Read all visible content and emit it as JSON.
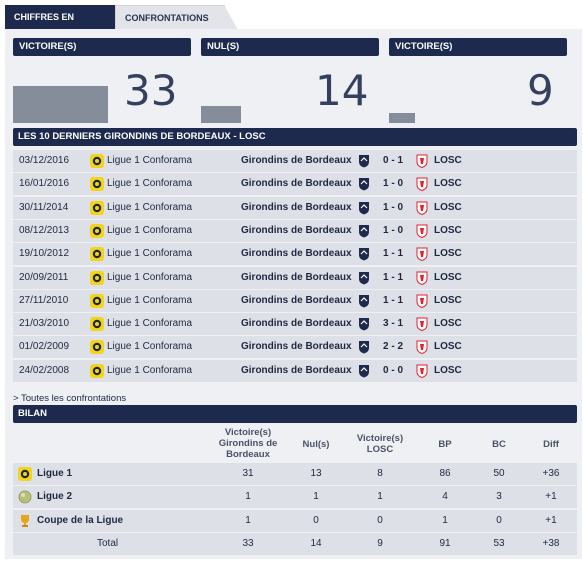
{
  "tabs": {
    "active": "CHIFFRES EN COURS",
    "inactive": "CONFRONTATIONS"
  },
  "summary": {
    "headers": [
      "VICTOIRE(S)",
      "NUL(S)",
      "VICTOIRE(S)"
    ],
    "values": [
      "33",
      "14",
      "9"
    ],
    "shares": [
      0.589,
      0.25,
      0.161
    ]
  },
  "matches_title": "LES 10 DERNIERS GIRONDINS DE BORDEAUX - LOSC",
  "matches": [
    {
      "date": "03/12/2016",
      "competition": "Ligue 1 Conforama",
      "home": "Girondins de Bordeaux",
      "score": "0 - 1",
      "away": "LOSC"
    },
    {
      "date": "16/01/2016",
      "competition": "Ligue 1 Conforama",
      "home": "Girondins de Bordeaux",
      "score": "1 - 0",
      "away": "LOSC"
    },
    {
      "date": "30/11/2014",
      "competition": "Ligue 1 Conforama",
      "home": "Girondins de Bordeaux",
      "score": "1 - 0",
      "away": "LOSC"
    },
    {
      "date": "08/12/2013",
      "competition": "Ligue 1 Conforama",
      "home": "Girondins de Bordeaux",
      "score": "1 - 0",
      "away": "LOSC"
    },
    {
      "date": "19/10/2012",
      "competition": "Ligue 1 Conforama",
      "home": "Girondins de Bordeaux",
      "score": "1 - 1",
      "away": "LOSC"
    },
    {
      "date": "20/09/2011",
      "competition": "Ligue 1 Conforama",
      "home": "Girondins de Bordeaux",
      "score": "1 - 1",
      "away": "LOSC"
    },
    {
      "date": "27/11/2010",
      "competition": "Ligue 1 Conforama",
      "home": "Girondins de Bordeaux",
      "score": "1 - 1",
      "away": "LOSC"
    },
    {
      "date": "21/03/2010",
      "competition": "Ligue 1 Conforama",
      "home": "Girondins de Bordeaux",
      "score": "3 - 1",
      "away": "LOSC"
    },
    {
      "date": "01/02/2009",
      "competition": "Ligue 1 Conforama",
      "home": "Girondins de Bordeaux",
      "score": "2 - 2",
      "away": "LOSC"
    },
    {
      "date": "24/02/2008",
      "competition": "Ligue 1 Conforama",
      "home": "Girondins de Bordeaux",
      "score": "0 - 0",
      "away": "LOSC"
    }
  ],
  "all_matches_link": "> Toutes les confrontations",
  "bilan": {
    "title": "BILAN",
    "columns": {
      "home_wins": [
        "Victoire(s)",
        "Girondins de",
        "Bordeaux"
      ],
      "draws": "Nul(s)",
      "away_wins": [
        "Victoire(s)",
        "LOSC"
      ],
      "bp": "BP",
      "bc": "BC",
      "diff": "Diff"
    },
    "rows": [
      {
        "competition": "Ligue 1",
        "icon": "ligue1-logo-icon",
        "values": [
          "31",
          "13",
          "8",
          "86",
          "50",
          "+36"
        ]
      },
      {
        "competition": "Ligue 2",
        "icon": "ligue2-ball-icon",
        "values": [
          "1",
          "1",
          "1",
          "4",
          "3",
          "+1"
        ]
      },
      {
        "competition": "Coupe de la Ligue",
        "icon": "trophy-icon",
        "values": [
          "1",
          "0",
          "0",
          "1",
          "0",
          "+1"
        ]
      }
    ],
    "total": {
      "label": "Total",
      "values": [
        "33",
        "14",
        "9",
        "91",
        "53",
        "+38"
      ]
    }
  },
  "colors": {
    "navy": "#1d2a4d",
    "row": "#dde0e7",
    "panel": "#eef0f4",
    "bar": "#858d9b",
    "ligue1": "#f2d51b",
    "losc": "#e2202f"
  }
}
